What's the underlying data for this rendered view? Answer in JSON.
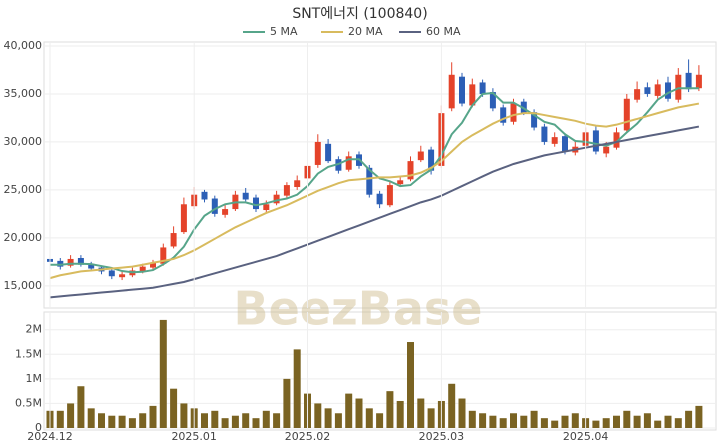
{
  "chart_data": [
    {
      "type": "candlestick",
      "title": "SNT에너지 (100840)",
      "watermark": "BeezBase",
      "ylim": [
        13000,
        40000
      ],
      "yticks": [
        {
          "value": 15000,
          "label": "15,000"
        },
        {
          "value": 20000,
          "label": "20,000"
        },
        {
          "value": 25000,
          "label": "25,000"
        },
        {
          "value": 30000,
          "label": "30,000"
        },
        {
          "value": 35000,
          "label": "35,000"
        },
        {
          "value": 40000,
          "label": "40,000"
        }
      ],
      "grid": true,
      "up_color": "#e4432a",
      "down_color": "#2c5fb6",
      "open": [
        17800,
        17600,
        17100,
        17900,
        17300,
        16900,
        16600,
        15900,
        16100,
        16500,
        16900,
        17300,
        19100,
        20600,
        23300,
        24800,
        24100,
        22400,
        23000,
        24700,
        24200,
        22900,
        23600,
        24400,
        25300,
        26200,
        27600,
        29800,
        28200,
        27100,
        28700,
        27300,
        24600,
        23400,
        25600,
        26100,
        28100,
        29200,
        27500,
        33500,
        36800,
        33800,
        36200,
        35200,
        33600,
        32100,
        34200,
        33100,
        31600,
        29800,
        30600,
        28900,
        29600,
        31200,
        28800,
        29400,
        31200,
        34400,
        35700,
        34800,
        36200,
        34400,
        37200,
        35600
      ],
      "high": [
        18300,
        17900,
        18200,
        18200,
        17500,
        17100,
        16800,
        16500,
        16900,
        17300,
        17700,
        19400,
        21200,
        24200,
        25300,
        25000,
        24400,
        23500,
        24900,
        25200,
        24500,
        23900,
        24900,
        25800,
        26500,
        28000,
        30800,
        30300,
        28500,
        29000,
        29000,
        27600,
        24900,
        25900,
        26400,
        28500,
        29600,
        29500,
        33800,
        38300,
        37200,
        36600,
        36500,
        35600,
        33900,
        34500,
        34500,
        33400,
        31900,
        31000,
        30900,
        30200,
        31500,
        31700,
        30000,
        31500,
        35000,
        36300,
        36200,
        36500,
        36800,
        37700,
        38600,
        38000
      ],
      "low": [
        17300,
        16700,
        16900,
        17000,
        16500,
        16200,
        15700,
        15600,
        15900,
        16300,
        16700,
        17100,
        18900,
        20400,
        23000,
        23700,
        22200,
        22100,
        22800,
        23800,
        22700,
        22700,
        23400,
        24200,
        25000,
        26000,
        27300,
        27800,
        26700,
        26900,
        27200,
        24200,
        23100,
        23200,
        25300,
        25900,
        27900,
        26600,
        27300,
        33200,
        33700,
        33600,
        34700,
        33200,
        31700,
        31800,
        32800,
        31200,
        29700,
        29500,
        28700,
        28600,
        29400,
        28700,
        28400,
        29200,
        31000,
        34100,
        34700,
        34500,
        34200,
        34100,
        35200,
        35300
      ],
      "close": [
        17500,
        17000,
        17800,
        17200,
        16800,
        16500,
        16000,
        16200,
        16600,
        17000,
        17400,
        19000,
        20500,
        23500,
        24500,
        24000,
        22500,
        23000,
        24500,
        24000,
        23000,
        23500,
        24500,
        25500,
        26000,
        27500,
        30000,
        28000,
        27000,
        28500,
        27500,
        24500,
        23500,
        25500,
        26000,
        28000,
        29000,
        27000,
        33000,
        37000,
        34000,
        36000,
        35000,
        33500,
        32000,
        34000,
        33000,
        31500,
        30000,
        30500,
        29000,
        29500,
        31000,
        29000,
        29500,
        31000,
        34500,
        35500,
        35000,
        36000,
        34500,
        37000,
        35500,
        37000
      ],
      "series": [
        {
          "name": "5 MA",
          "color": "#56a58a",
          "values": [
            17200,
            17200,
            17300,
            17300,
            17260,
            17060,
            16860,
            16540,
            16420,
            16460,
            16640,
            17240,
            17940,
            19080,
            20880,
            22300,
            23000,
            23500,
            23700,
            23700,
            23400,
            23600,
            23900,
            24100,
            24500,
            25400,
            26700,
            27400,
            27700,
            28200,
            28200,
            27100,
            26200,
            25900,
            25400,
            25500,
            26400,
            27100,
            28600,
            30800,
            32000,
            33800,
            35000,
            35100,
            34100,
            34100,
            33500,
            32800,
            32100,
            31800,
            30800,
            30100,
            30000,
            29800,
            29600,
            30000,
            31000,
            31900,
            33100,
            34400,
            35100,
            35600,
            35600,
            35600
          ]
        },
        {
          "name": "20 MA",
          "color": "#d8bb5e",
          "values": [
            15800,
            16100,
            16300,
            16500,
            16600,
            16700,
            16800,
            16900,
            17000,
            17200,
            17400,
            17600,
            17800,
            18200,
            18700,
            19300,
            19900,
            20500,
            21100,
            21600,
            22100,
            22600,
            23000,
            23400,
            23900,
            24400,
            24900,
            25300,
            25700,
            26000,
            26100,
            26200,
            26300,
            26300,
            26400,
            26500,
            26800,
            27300,
            28000,
            29000,
            30000,
            30700,
            31300,
            31900,
            32400,
            32800,
            33000,
            33000,
            32800,
            32600,
            32400,
            32200,
            31900,
            31700,
            31600,
            31800,
            32100,
            32400,
            32700,
            33000,
            33300,
            33600,
            33800,
            34000
          ]
        },
        {
          "name": "60 MA",
          "color": "#5a6280",
          "values": [
            13800,
            13900,
            14000,
            14100,
            14200,
            14300,
            14400,
            14500,
            14600,
            14700,
            14800,
            15000,
            15200,
            15400,
            15700,
            16000,
            16300,
            16600,
            16900,
            17200,
            17500,
            17800,
            18100,
            18500,
            18900,
            19300,
            19700,
            20100,
            20500,
            20900,
            21300,
            21700,
            22100,
            22500,
            22900,
            23300,
            23700,
            24000,
            24400,
            24900,
            25400,
            25900,
            26400,
            26900,
            27300,
            27700,
            28000,
            28300,
            28600,
            28800,
            29000,
            29200,
            29400,
            29600,
            29800,
            30000,
            30200,
            30400,
            30600,
            30800,
            31000,
            31200,
            31400,
            31600
          ]
        }
      ]
    },
    {
      "type": "bar",
      "color": "#7a6322",
      "categories": [
        "2024.12",
        null,
        null,
        null,
        null,
        null,
        null,
        null,
        null,
        null,
        null,
        null,
        null,
        null,
        "2025.01",
        null,
        null,
        null,
        null,
        null,
        null,
        null,
        null,
        null,
        null,
        "2025.02",
        null,
        null,
        null,
        null,
        null,
        null,
        null,
        null,
        null,
        null,
        null,
        null,
        "2025.03",
        null,
        null,
        null,
        null,
        null,
        null,
        null,
        null,
        null,
        null,
        null,
        null,
        null,
        "2025.04",
        null,
        null,
        null,
        null,
        null,
        null,
        null,
        null,
        null,
        null,
        null
      ],
      "values": [
        350000,
        350000,
        500000,
        850000,
        400000,
        300000,
        250000,
        250000,
        200000,
        300000,
        450000,
        2200000,
        800000,
        500000,
        400000,
        300000,
        350000,
        200000,
        250000,
        300000,
        200000,
        350000,
        300000,
        1000000,
        1600000,
        700000,
        500000,
        400000,
        300000,
        700000,
        600000,
        400000,
        300000,
        750000,
        550000,
        1750000,
        600000,
        400000,
        550000,
        900000,
        600000,
        350000,
        300000,
        250000,
        200000,
        300000,
        250000,
        350000,
        200000,
        150000,
        250000,
        300000,
        200000,
        150000,
        200000,
        250000,
        350000,
        250000,
        300000,
        150000,
        250000,
        200000,
        350000,
        450000
      ],
      "ylim": [
        0,
        2300000
      ],
      "yticks": [
        0,
        {
          "value": 500000,
          "label": "0.5M"
        },
        {
          "value": 1000000,
          "label": "1M"
        },
        {
          "value": 1500000,
          "label": "1.5M"
        },
        {
          "value": 2000000,
          "label": "2M"
        }
      ],
      "grid": true
    }
  ]
}
